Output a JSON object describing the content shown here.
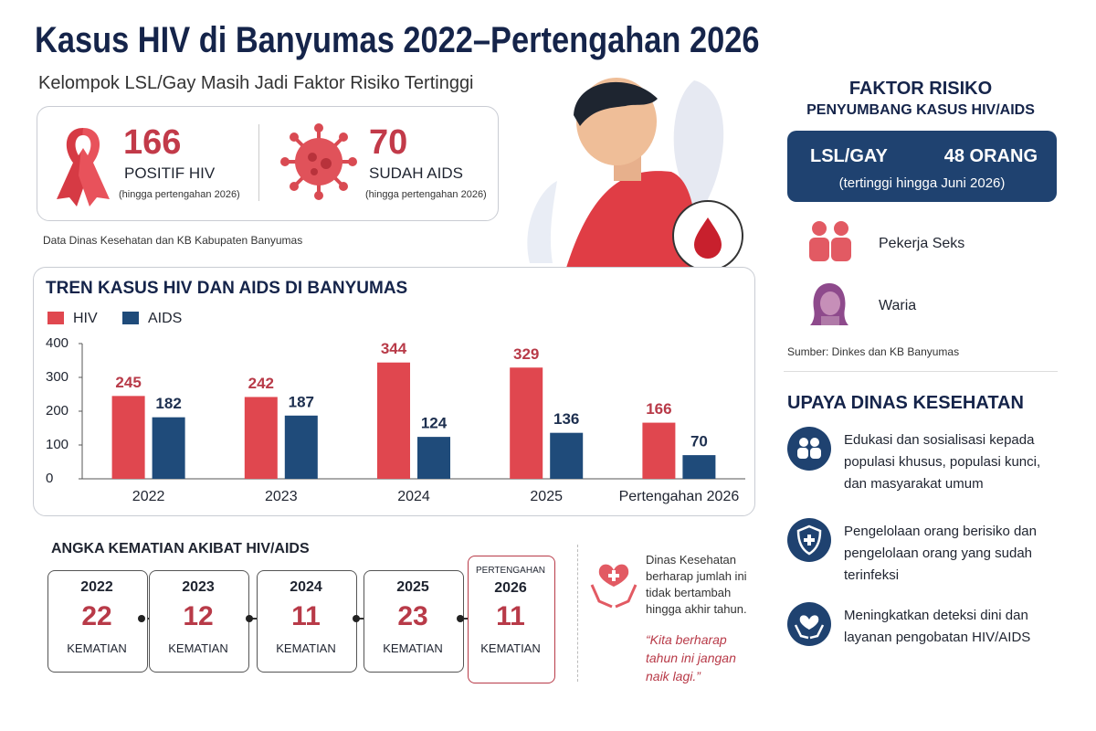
{
  "header": {
    "title": "Kasus HIV di Banyumas 2022–Pertengahan 2026",
    "subtitle": "Kelompok LSL/Gay Masih Jadi Faktor Risiko Tertinggi"
  },
  "summary": {
    "items": [
      {
        "value": 166,
        "label": "POSITIF HIV",
        "note": "(hingga pertengahan 2026)"
      },
      {
        "value": 70,
        "label": "SUDAH AIDS",
        "note": "(hingga pertengahan 2026)"
      }
    ],
    "source": "Data Dinas Kesehatan dan KB Kabupaten Banyumas"
  },
  "chart_data": {
    "type": "bar",
    "title": "TREN KASUS HIV DAN AIDS DI BANYUMAS",
    "categories": [
      "2022",
      "2023",
      "2024",
      "2025",
      "Pertengahan 2026"
    ],
    "series": [
      {
        "name": "HIV",
        "color": "#e0474f",
        "label_color": "#b83a48",
        "values": [
          245,
          242,
          344,
          329,
          166
        ]
      },
      {
        "name": "AIDS",
        "color": "#1f4b7a",
        "label_color": "#1d2f4f",
        "values": [
          182,
          187,
          124,
          136,
          70
        ]
      }
    ],
    "ylim": [
      0,
      400
    ],
    "yticks": [
      0,
      100,
      200,
      300,
      400
    ],
    "grid": false,
    "data_labels": true
  },
  "deaths": {
    "title": "ANGKA KEMATIAN AKIBAT HIV/AIDS",
    "items": [
      {
        "period": "2022",
        "value": 22,
        "unit": "KEMATIAN"
      },
      {
        "period": "2023",
        "value": 12,
        "unit": "KEMATIAN"
      },
      {
        "period": "2024",
        "value": 11,
        "unit": "KEMATIAN"
      },
      {
        "period": "2025",
        "value": 23,
        "unit": "KEMATIAN"
      },
      {
        "period_prefix": "PERTENGAHAN",
        "period": "2026",
        "value": 11,
        "unit": "KEMATIAN"
      }
    ],
    "note": "Dinas Kesehatan berharap jumlah ini tidak bertambah hingga akhir tahun.",
    "quote": "“Kita berharap tahun ini jangan naik lagi.”"
  },
  "risk_factors": {
    "title": "FAKTOR RISIKO",
    "subtitle": "PENYUMBANG KASUS HIV/AIDS",
    "top": {
      "name": "LSL/GAY",
      "value": "48 ORANG",
      "note": "(tertinggi hingga Juni 2026)"
    },
    "others": [
      "Pekerja Seks",
      "Waria"
    ],
    "source": "Sumber: Dinkes dan KB Banyumas"
  },
  "efforts": {
    "title": "UPAYA DINAS KESEHATAN",
    "items": [
      "Edukasi dan sosialisasi kepada populasi khusus, populasi kunci, dan masyarakat umum",
      "Pengelolaan orang berisiko dan pengelolaan orang yang sudah terinfeksi",
      "Meningkatkan deteksi dini dan layanan pengobatan HIV/AIDS"
    ]
  }
}
